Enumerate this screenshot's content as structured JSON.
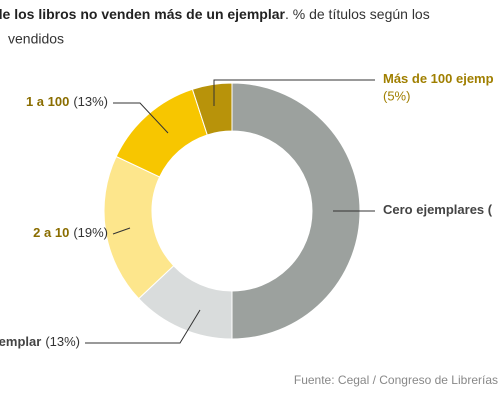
{
  "chart_data": {
    "type": "donut",
    "title": "de los libros no venden más de un ejemplar",
    "subtitle": ". % de títulos según los",
    "subtitle_2": "vendidos",
    "source": "Fuente: Cegal / Congreso de Librerías",
    "categories": [
      "Cero ejemplares (",
      "jemplar",
      "2 a 10",
      "1 a 100",
      "Más de 100 ejemp"
    ],
    "values": [
      50,
      13,
      19,
      13,
      5
    ],
    "value_labels": [
      null,
      "(13%)",
      "(19%)",
      "(13%)",
      "(5%)"
    ],
    "colors": [
      "#9ca19e",
      "#d9dcdc",
      "#fde68c",
      "#f7c600",
      "#b8930a"
    ],
    "label_colors": [
      "#444444",
      "#444444",
      "#8a6d00",
      "#8a6d00",
      "#a07f00"
    ]
  }
}
